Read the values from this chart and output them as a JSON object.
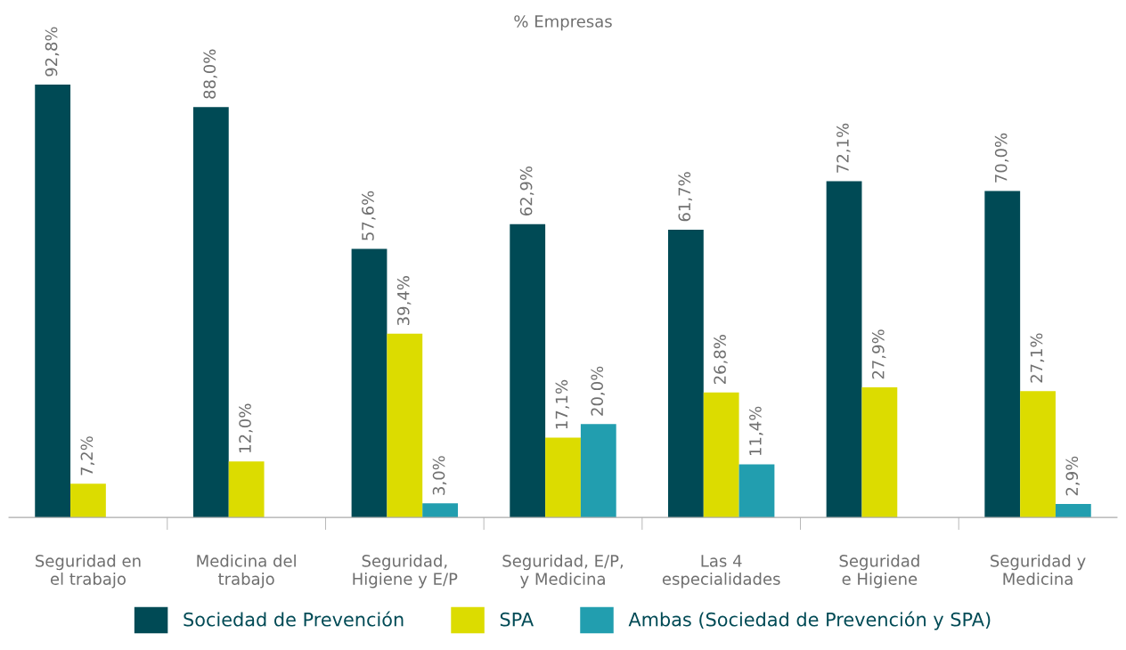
{
  "chart_data": {
    "type": "bar",
    "title": "% Empresas",
    "categories": [
      "Seguridad en\nel trabajo",
      "Medicina del\ntrabajo",
      "Seguridad,\nHigiene y E/P",
      "Seguridad, E/P,\ny Medicina",
      "Las 4\nespecialidades",
      "Seguridad\ne Higiene",
      "Seguridad y\nMedicina"
    ],
    "series": [
      {
        "name": "Sociedad de Prevención",
        "color": "#004a55",
        "values": [
          92.8,
          88.0,
          57.6,
          62.9,
          61.7,
          72.1,
          70.0
        ],
        "value_labels": [
          "92,8%",
          "88,0%",
          "57,6%",
          "62,9%",
          "61,7%",
          "72,1%",
          "70,0%"
        ]
      },
      {
        "name": "SPA",
        "color": "#dcdc00",
        "values": [
          7.2,
          12.0,
          39.4,
          17.1,
          26.8,
          27.9,
          27.1
        ],
        "value_labels": [
          "7,2%",
          "12,0%",
          "39,4%",
          "17,1%",
          "26,8%",
          "27,9%",
          "27,1%"
        ]
      },
      {
        "name": "Ambas (Sociedad de Prevención y SPA)",
        "color": "#229eaf",
        "values": [
          null,
          null,
          3.0,
          20.0,
          11.4,
          null,
          2.9
        ],
        "value_labels": [
          null,
          null,
          "3,0%",
          "20,0%",
          "11,4%",
          null,
          "2,9%"
        ]
      }
    ],
    "tick_labels": "x",
    "grid": false,
    "legend": "bottom"
  }
}
